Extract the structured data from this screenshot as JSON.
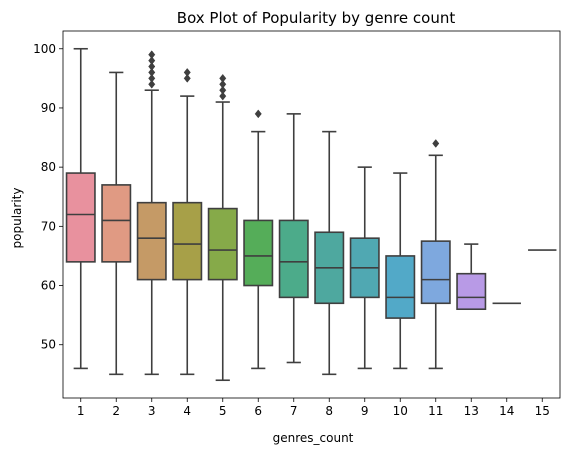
{
  "chart_data": {
    "type": "box",
    "title": "Box Plot of Popularity by genre count",
    "xlabel": "genres_count",
    "ylabel": "popularity",
    "ylim": [
      41,
      103
    ],
    "yticks": [
      50,
      60,
      70,
      80,
      90,
      100
    ],
    "grid": false,
    "categories": [
      "1",
      "2",
      "3",
      "4",
      "5",
      "6",
      "7",
      "8",
      "9",
      "10",
      "11",
      "13",
      "14",
      "15"
    ],
    "boxes": [
      {
        "category": "1",
        "whisker_low": 46,
        "q1": 64,
        "median": 72,
        "q3": 79,
        "whisker_high": 100,
        "outliers": [],
        "color": "#e8919e"
      },
      {
        "category": "2",
        "whisker_low": 45,
        "q1": 64,
        "median": 71,
        "q3": 77,
        "whisker_high": 96,
        "outliers": [],
        "color": "#e09a83"
      },
      {
        "category": "3",
        "whisker_low": 45,
        "q1": 61,
        "median": 68,
        "q3": 74,
        "whisker_high": 93,
        "outliers": [
          94,
          95,
          96,
          97,
          98,
          99
        ],
        "color": "#c59a66"
      },
      {
        "category": "4",
        "whisker_low": 45,
        "q1": 61,
        "median": 67,
        "q3": 74,
        "whisker_high": 92,
        "outliers": [
          95,
          96
        ],
        "color": "#a7a048"
      },
      {
        "category": "5",
        "whisker_low": 44,
        "q1": 61,
        "median": 66,
        "q3": 73,
        "whisker_high": 91,
        "outliers": [
          92,
          93,
          94,
          95
        ],
        "color": "#86aa49"
      },
      {
        "category": "6",
        "whisker_low": 46,
        "q1": 60,
        "median": 65,
        "q3": 71,
        "whisker_high": 86,
        "outliers": [
          89
        ],
        "color": "#55ad59"
      },
      {
        "category": "7",
        "whisker_low": 47,
        "q1": 58,
        "median": 64,
        "q3": 71,
        "whisker_high": 89,
        "outliers": [],
        "color": "#4cab8a"
      },
      {
        "category": "8",
        "whisker_low": 45,
        "q1": 57,
        "median": 63,
        "q3": 69,
        "whisker_high": 86,
        "outliers": [],
        "color": "#4ea89f"
      },
      {
        "category": "9",
        "whisker_low": 46,
        "q1": 58,
        "median": 63,
        "q3": 68,
        "whisker_high": 80,
        "outliers": [],
        "color": "#50a8b2"
      },
      {
        "category": "10",
        "whisker_low": 46,
        "q1": 54.5,
        "median": 58,
        "q3": 65,
        "whisker_high": 79,
        "outliers": [],
        "color": "#52a9c8"
      },
      {
        "category": "11",
        "whisker_low": 46,
        "q1": 57,
        "median": 61,
        "q3": 67.5,
        "whisker_high": 82,
        "outliers": [
          84
        ],
        "color": "#7ea8de"
      },
      {
        "category": "13",
        "whisker_low": 56,
        "q1": 56,
        "median": 58,
        "q3": 62,
        "whisker_high": 67,
        "outliers": [],
        "color": "#b89ae6"
      },
      {
        "category": "14",
        "whisker_low": 57,
        "q1": 57,
        "median": 57,
        "q3": 57,
        "whisker_high": 57,
        "outliers": [],
        "color": "#dc8edc"
      },
      {
        "category": "15",
        "whisker_low": 66,
        "q1": 66,
        "median": 66,
        "q3": 66,
        "whisker_high": 66,
        "outliers": [],
        "color": "#e98fc1"
      }
    ],
    "line_color": "#3f3f3f"
  }
}
